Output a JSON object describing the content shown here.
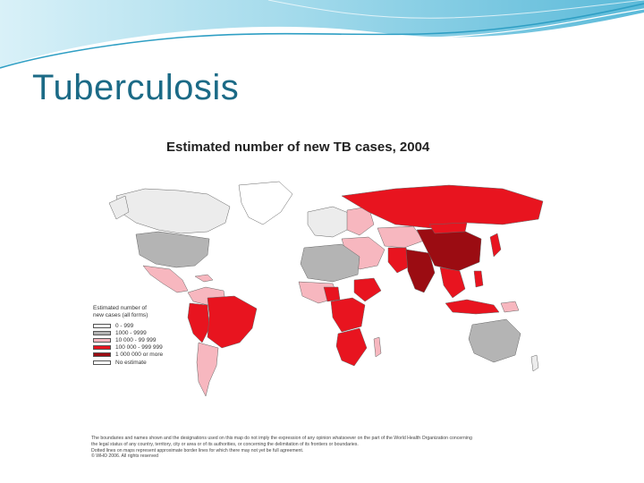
{
  "slide": {
    "title": "Tuberculosis"
  },
  "map": {
    "title": "Estimated number of new TB cases, 2004",
    "legend": {
      "title_line1": "Estimated number of",
      "title_line2": "new cases (all forms)",
      "items": [
        {
          "label": "0 - 999",
          "color": "#ececec"
        },
        {
          "label": "1000 - 9999",
          "color": "#b4b4b4"
        },
        {
          "label": "10 000 - 99 999",
          "color": "#f7b7bf"
        },
        {
          "label": "100 000 - 999 999",
          "color": "#e8141f"
        },
        {
          "label": "1 000 000 or more",
          "color": "#9b0c12"
        },
        {
          "label": "No estimate",
          "color": "#ffffff"
        }
      ]
    },
    "disclaimer": [
      "The boundaries and names shown and the designations used on this map do not imply the expression of any opinion whatsoever on the part of the World Health Organization concerning",
      "the legal status of any country, territory, city or area or of its authorities, or concerning the delimitation of its frontiers or boundaries.",
      "Dotted lines on maps represent approximate border lines for which there may not yet be full agreement.",
      "© WHO 2006. All rights reserved"
    ]
  },
  "colors": {
    "title": "#1b6a86",
    "wave_dark": "#2f9fc4",
    "wave_light": "#bfe6f3"
  }
}
